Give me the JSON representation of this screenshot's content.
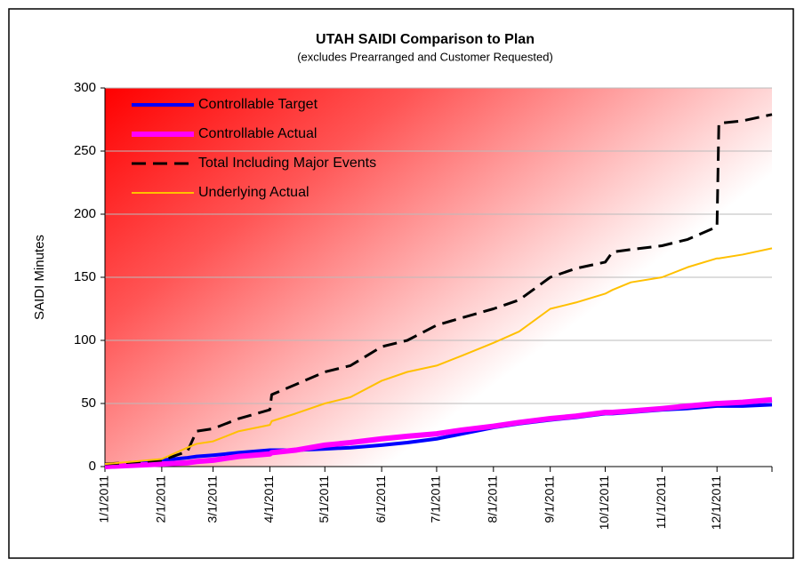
{
  "chart_data": {
    "type": "line",
    "title": "UTAH SAIDI Comparison to Plan",
    "subtitle": "(excludes Prearranged and Customer Requested)",
    "ylabel": "SAIDI Minutes",
    "x": [
      "1/1/2011",
      "2/1/2011",
      "2/15/2011",
      "2/20/2011",
      "3/1/2011",
      "3/15/2011",
      "4/1/2011",
      "4/2/2011",
      "4/15/2011",
      "5/1/2011",
      "5/15/2011",
      "6/1/2011",
      "6/15/2011",
      "7/1/2011",
      "7/15/2011",
      "8/1/2011",
      "8/15/2011",
      "9/1/2011",
      "9/15/2011",
      "10/1/2011",
      "10/5/2011",
      "10/15/2011",
      "11/1/2011",
      "11/15/2011",
      "12/1/2011",
      "12/2/2011",
      "12/15/2011",
      "12/31/2011"
    ],
    "series": [
      {
        "name": "Controllable Target",
        "color": "#0000ff",
        "values": [
          0,
          5,
          7,
          8,
          9,
          11,
          13,
          13,
          13,
          14,
          15,
          17,
          19,
          22,
          26,
          31,
          34,
          37,
          39,
          42,
          42,
          43,
          45,
          46,
          48,
          48,
          48,
          49
        ]
      },
      {
        "name": "Controllable Actual",
        "color": "#ff00ff",
        "values": [
          0,
          2,
          3,
          4,
          5,
          8,
          10,
          11,
          13,
          17,
          19,
          22,
          24,
          26,
          29,
          32,
          35,
          38,
          40,
          43,
          43,
          44,
          46,
          48,
          50,
          50,
          51,
          53
        ]
      },
      {
        "name": "Total Including Major Events",
        "color": "#000000",
        "dashed": true,
        "values": [
          2,
          5,
          12,
          28,
          30,
          38,
          45,
          57,
          65,
          75,
          80,
          95,
          100,
          112,
          118,
          125,
          132,
          150,
          157,
          162,
          170,
          172,
          175,
          180,
          190,
          272,
          274,
          279
        ]
      },
      {
        "name": "Underlying Actual",
        "color": "#ffc000",
        "values": [
          2,
          6,
          15,
          18,
          20,
          28,
          33,
          36,
          42,
          50,
          55,
          68,
          75,
          80,
          88,
          98,
          107,
          125,
          130,
          137,
          140,
          146,
          150,
          158,
          165,
          165,
          168,
          173
        ]
      }
    ],
    "xlim": [
      "1/1/2011",
      "12/31/2011"
    ],
    "xticks": [
      "1/1/2011",
      "2/1/2011",
      "3/1/2011",
      "4/1/2011",
      "5/1/2011",
      "6/1/2011",
      "7/1/2011",
      "8/1/2011",
      "9/1/2011",
      "10/1/2011",
      "11/1/2011",
      "12/1/2011"
    ],
    "ylim": [
      0,
      300
    ],
    "yticks": [
      0,
      50,
      100,
      150,
      200,
      250,
      300
    ],
    "grid": true,
    "legend": "upper left"
  }
}
